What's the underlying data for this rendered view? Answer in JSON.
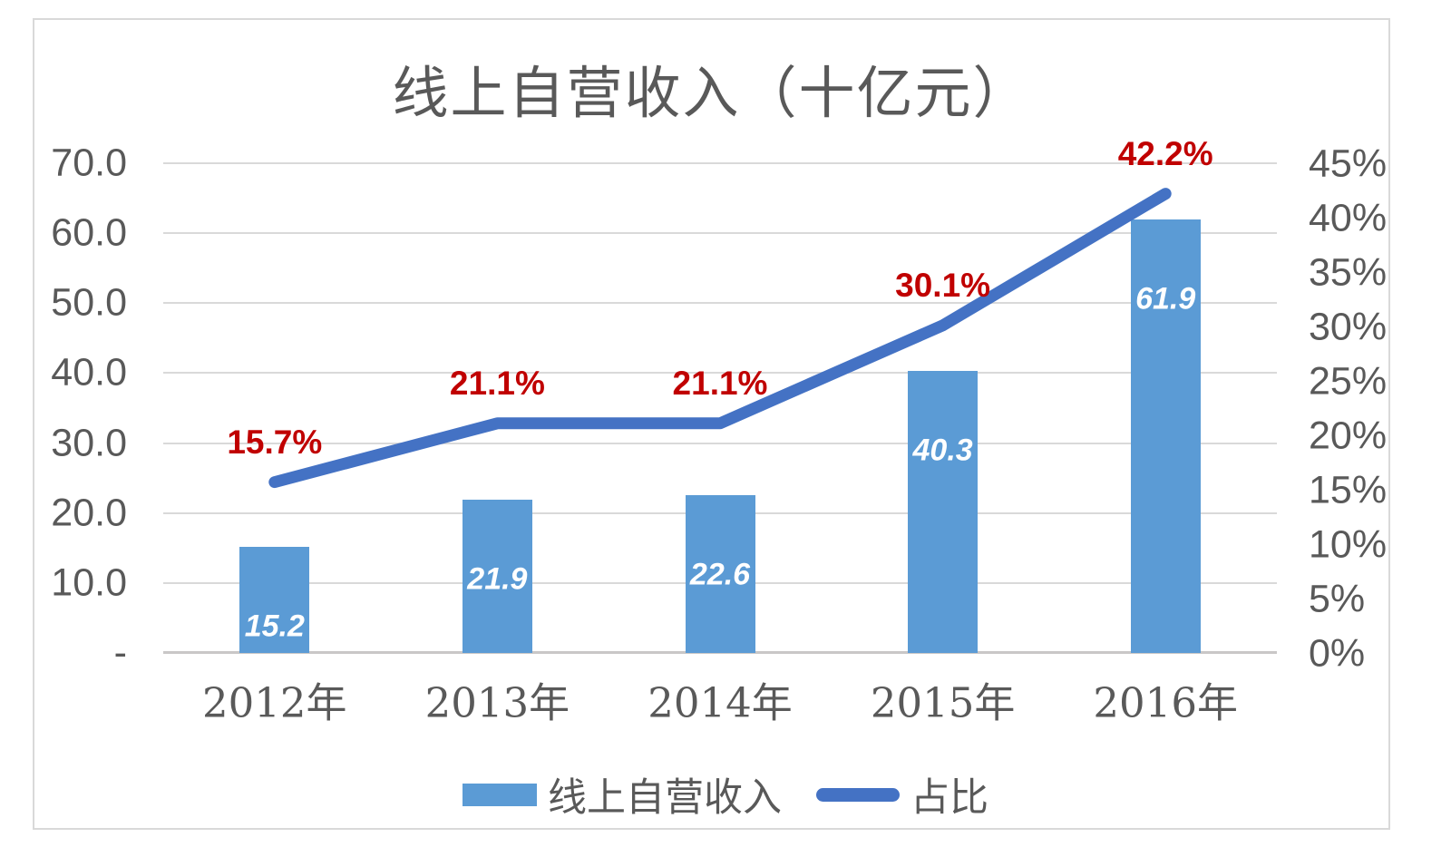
{
  "chart_data": {
    "type": "combo-bar-line",
    "title": "线上自营收入（十亿元）",
    "categories": [
      "2012年",
      "2013年",
      "2014年",
      "2015年",
      "2016年"
    ],
    "series": [
      {
        "name": "线上自营收入",
        "type": "bar",
        "axis": "left",
        "values": [
          15.2,
          21.9,
          22.6,
          40.3,
          61.9
        ],
        "labels": [
          "15.2",
          "21.9",
          "22.6",
          "40.3",
          "61.9"
        ],
        "color": "#5b9bd5"
      },
      {
        "name": "占比",
        "type": "line",
        "axis": "right",
        "values": [
          15.7,
          21.1,
          21.1,
          30.1,
          42.2
        ],
        "labels": [
          "15.7%",
          "21.1%",
          "21.1%",
          "30.1%",
          "42.2%"
        ],
        "color": "#4472c4"
      }
    ],
    "left_axis": {
      "min": 0,
      "max": 70,
      "tick_values": [
        70,
        60,
        50,
        40,
        30,
        20,
        10,
        0
      ],
      "tick_labels": [
        "70.0",
        "60.0",
        "50.0",
        "40.0",
        "30.0",
        "20.0",
        "10.0",
        "-"
      ]
    },
    "right_axis": {
      "min": 0,
      "max": 45,
      "tick_values": [
        45,
        40,
        35,
        30,
        25,
        20,
        15,
        10,
        5,
        0
      ],
      "tick_labels": [
        "45%",
        "40%",
        "35%",
        "30%",
        "25%",
        "20%",
        "15%",
        "10%",
        "5%",
        "0%"
      ]
    },
    "grid": true,
    "legend_position": "bottom"
  },
  "colors": {
    "bar_fill": "#5b9bd5",
    "line_stroke": "#4472c4",
    "percent_label": "#c00000",
    "axis_text": "#595959",
    "gridline": "#d9d9d9",
    "axis_line": "#c9c7c7",
    "frame_border": "#d9d9d9",
    "bar_value_label": "#ffffff"
  }
}
